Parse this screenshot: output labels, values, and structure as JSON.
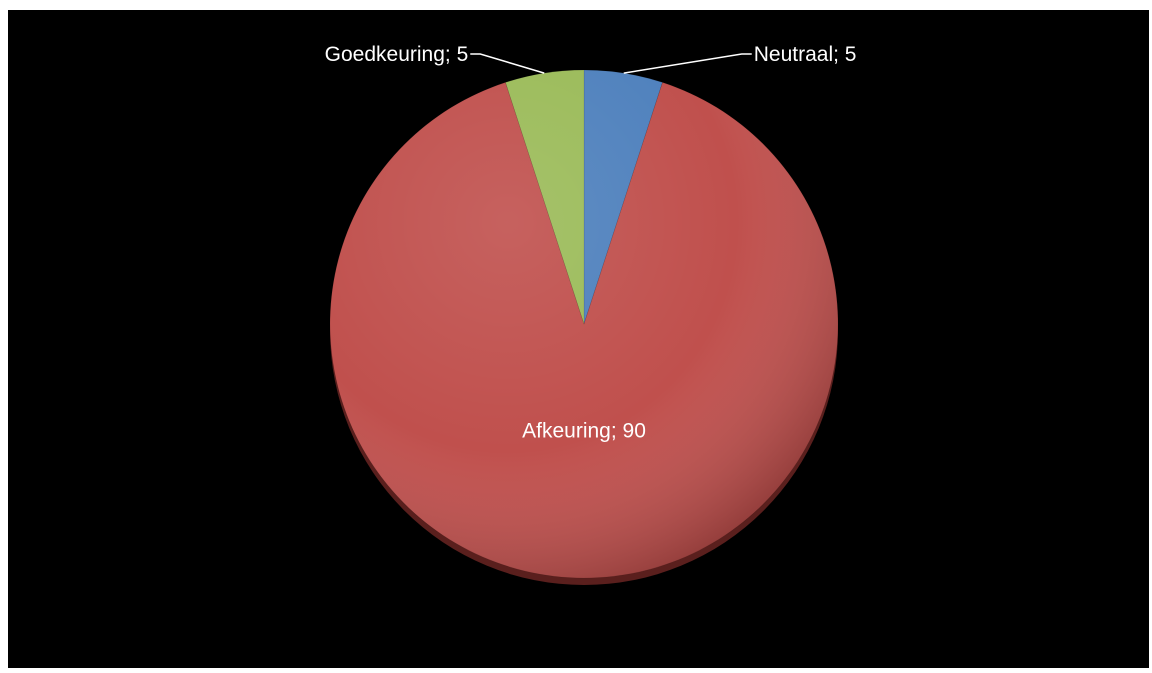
{
  "chart_data": {
    "type": "pie",
    "title": "",
    "slices": [
      {
        "label": "Neutraal; 5",
        "name": "Neutraal",
        "value": 5,
        "color": "#4F81BD"
      },
      {
        "label": "Afkeuring; 90",
        "name": "Afkeuring",
        "value": 90,
        "color": "#C0504D"
      },
      {
        "label": "Goedkeuring; 5",
        "name": "Goedkeuring",
        "value": 5,
        "color": "#9BBB59"
      }
    ],
    "legend": "none",
    "background": "#000000"
  }
}
